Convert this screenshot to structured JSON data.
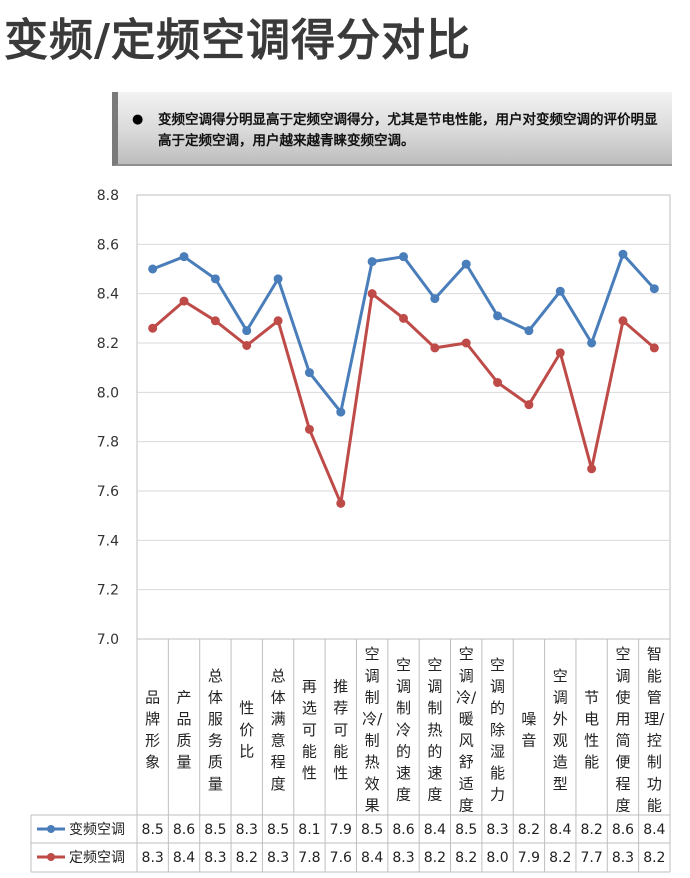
{
  "page": {
    "title": "变频/定频空调得分对比",
    "note": "变频空调得分明显高于定频空调得分，尤其是节电性能，用户对变频空调的评价明显高于定频空调，用户越来越青睐变频空调。"
  },
  "chart_data": {
    "type": "line",
    "title": "",
    "xlabel": "",
    "ylabel": "",
    "ylim": [
      7.0,
      8.8
    ],
    "yticks": [
      "7.0",
      "7.2",
      "7.4",
      "7.6",
      "7.8",
      "8.0",
      "8.2",
      "8.4",
      "8.6",
      "8.8"
    ],
    "grid": true,
    "legend": "table-bottom",
    "categories": [
      "品牌形象",
      "产品质量",
      "总体服务质量",
      "性价比",
      "总体满意程度",
      "再选可能性",
      "推荐可能性",
      "空调制冷/制热效果",
      "空调制冷的速度",
      "空调制热的速度",
      "空调冷/暖风舒适度",
      "空调的除湿能力",
      "噪音",
      "空调外观造型",
      "节电性能",
      "空调使用简便程度",
      "智能管理/控制功能"
    ],
    "series": [
      {
        "name": "变频空调",
        "color": "#4a7ebb",
        "values": [
          8.5,
          8.55,
          8.46,
          8.25,
          8.46,
          8.08,
          7.92,
          8.53,
          8.55,
          8.38,
          8.52,
          8.31,
          8.25,
          8.41,
          8.2,
          8.56,
          8.42
        ],
        "labels": [
          "8.5",
          "8.6",
          "8.5",
          "8.3",
          "8.5",
          "8.1",
          "7.9",
          "8.5",
          "8.6",
          "8.4",
          "8.5",
          "8.3",
          "8.2",
          "8.4",
          "8.2",
          "8.6",
          "8.4"
        ]
      },
      {
        "name": "定频空调",
        "color": "#be4b48",
        "values": [
          8.26,
          8.37,
          8.29,
          8.19,
          8.29,
          7.85,
          7.55,
          8.4,
          8.3,
          8.18,
          8.2,
          8.04,
          7.95,
          8.16,
          7.69,
          8.29,
          8.18
        ],
        "labels": [
          "8.3",
          "8.4",
          "8.3",
          "8.2",
          "8.3",
          "7.8",
          "7.6",
          "8.4",
          "8.3",
          "8.2",
          "8.2",
          "8.0",
          "7.9",
          "8.2",
          "7.7",
          "8.3",
          "8.2"
        ]
      }
    ]
  }
}
